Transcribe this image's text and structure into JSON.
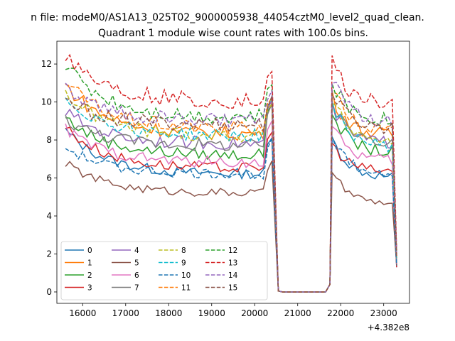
{
  "figure": {
    "suptitle": "n file: modeM0/AS1A13_025T02_9000005938_44054cztM0_level2_quad_clean."
  },
  "chart_data": {
    "type": "line",
    "title": "Quadrant 1 module wise count rates with 100.0s bins.",
    "xlabel": "",
    "ylabel": "",
    "x_offset_label": "+4.382e8",
    "xlim": [
      15400,
      23600
    ],
    "ylim": [
      -0.6,
      13.2
    ],
    "x_ticks": [
      16000,
      17000,
      18000,
      19000,
      20000,
      21000,
      22000,
      23000
    ],
    "y_ticks": [
      0,
      2,
      4,
      6,
      8,
      10,
      12
    ],
    "grid": false,
    "legend": {
      "placement": "lower-left",
      "columns": 4
    },
    "segments": [
      {
        "start": 15600,
        "end": 20400
      },
      {
        "start": 20400,
        "end": 20550
      },
      {
        "start": 20550,
        "end": 21650
      },
      {
        "start": 21650,
        "end": 21800
      },
      {
        "start": 21800,
        "end": 23300
      }
    ],
    "series": [
      {
        "name": "0",
        "color": "#1f77b4",
        "dash": "solid",
        "first": 8.5,
        "a": 6.2,
        "b": 6.3,
        "peak": 8.1,
        "c": 6.0,
        "last": 1.3
      },
      {
        "name": "1",
        "color": "#ff7f0e",
        "dash": "solid",
        "first": 10.9,
        "a": 8.3,
        "b": 8.2,
        "peak": 10.3,
        "c": 8.2,
        "last": 1.9
      },
      {
        "name": "2",
        "color": "#2ca02c",
        "dash": "solid",
        "first": 9.2,
        "a": 7.2,
        "b": 8.1,
        "peak": 9.5,
        "c": 7.3,
        "last": 1.4
      },
      {
        "name": "3",
        "color": "#d62728",
        "dash": "solid",
        "first": 8.7,
        "a": 6.5,
        "b": 6.6,
        "peak": 7.8,
        "c": 6.3,
        "last": 1.3
      },
      {
        "name": "4",
        "color": "#9467bd",
        "dash": "solid",
        "first": 9.5,
        "a": 7.8,
        "b": 8.3,
        "peak": 9.7,
        "c": 7.8,
        "last": 1.5
      },
      {
        "name": "5",
        "color": "#8c564b",
        "dash": "solid",
        "first": 6.8,
        "a": 5.2,
        "b": 5.1,
        "peak": 6.4,
        "c": 4.6,
        "last": 1.4
      },
      {
        "name": "6",
        "color": "#e377c2",
        "dash": "solid",
        "first": 8.6,
        "a": 6.8,
        "b": 7.2,
        "peak": 8.7,
        "c": 6.9,
        "last": 1.5
      },
      {
        "name": "7",
        "color": "#7f7f7f",
        "dash": "solid",
        "first": 9.1,
        "a": 7.7,
        "b": 8.1,
        "peak": 9.8,
        "c": 7.9,
        "last": 1.6
      },
      {
        "name": "8",
        "color": "#bcbd22",
        "dash": "dashed",
        "first": 10.5,
        "a": 8.2,
        "b": 8.1,
        "peak": 10.2,
        "c": 7.9,
        "last": 1.8
      },
      {
        "name": "9",
        "color": "#17becf",
        "dash": "dashed",
        "first": 10.2,
        "a": 8.2,
        "b": 8.4,
        "peak": 10.0,
        "c": 7.6,
        "last": 1.8
      },
      {
        "name": "10",
        "color": "#1f77b4",
        "dash": "dashed",
        "first": 7.6,
        "a": 6.2,
        "b": 6.3,
        "peak": 8.0,
        "c": 6.2,
        "last": 1.4
      },
      {
        "name": "11",
        "color": "#ff7f0e",
        "dash": "dashed",
        "first": 11.1,
        "a": 8.6,
        "b": 8.4,
        "peak": 10.8,
        "c": 8.4,
        "last": 1.9
      },
      {
        "name": "12",
        "color": "#2ca02c",
        "dash": "dashed",
        "first": 12.0,
        "a": 9.2,
        "b": 9.1,
        "peak": 11.0,
        "c": 9.0,
        "last": 2.0
      },
      {
        "name": "13",
        "color": "#d62728",
        "dash": "dashed",
        "first": 12.6,
        "a": 10.0,
        "b": 9.8,
        "peak": 12.2,
        "c": 9.8,
        "last": 2.2
      },
      {
        "name": "14",
        "color": "#9467bd",
        "dash": "dashed",
        "first": 10.7,
        "a": 9.0,
        "b": 8.8,
        "peak": 11.3,
        "c": 8.8,
        "last": 1.9
      },
      {
        "name": "15",
        "color": "#8c564b",
        "dash": "dashed",
        "first": 10.0,
        "a": 8.8,
        "b": 8.5,
        "peak": 10.5,
        "c": 8.6,
        "last": 1.8
      }
    ]
  }
}
